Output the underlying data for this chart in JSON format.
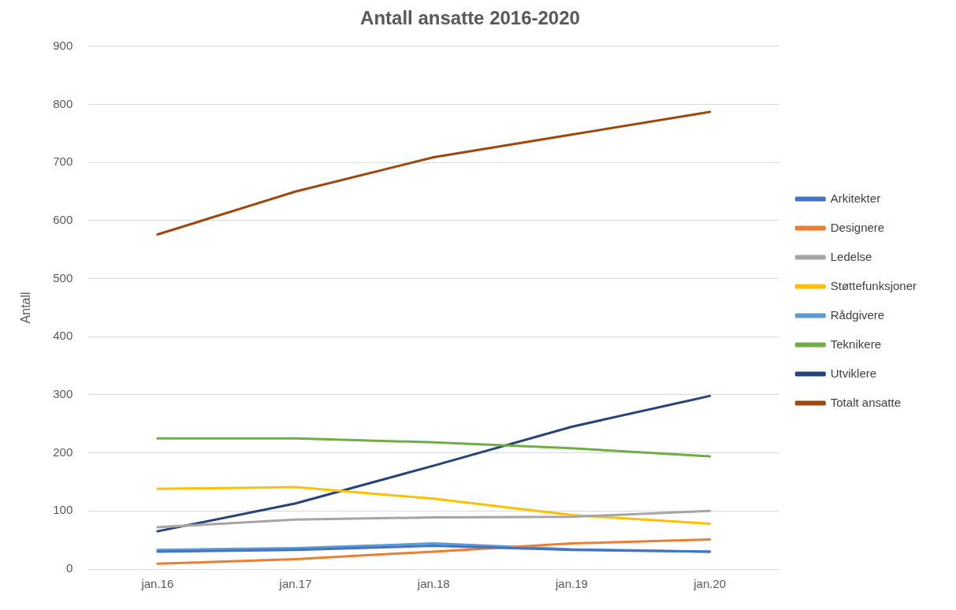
{
  "chart_data": {
    "type": "line",
    "title": "Antall ansatte 2016-2020",
    "ylabel": "Antall",
    "categories": [
      "jan.16",
      "jan.17",
      "jan.18",
      "jan.19",
      "jan.20"
    ],
    "series": [
      {
        "name": "Arkitekter",
        "color": "#4472c4",
        "values": [
          30,
          33,
          40,
          33,
          30
        ]
      },
      {
        "name": "Designere",
        "color": "#ed7d31",
        "values": [
          9,
          17,
          30,
          44,
          51
        ]
      },
      {
        "name": "Ledelse",
        "color": "#a5a5a5",
        "values": [
          72,
          85,
          89,
          90,
          100
        ]
      },
      {
        "name": "Støttefunksjoner",
        "color": "#ffc000",
        "values": [
          138,
          141,
          121,
          93,
          78
        ]
      },
      {
        "name": "Rådgivere",
        "color": "#5b9bd5",
        "values": [
          33,
          36,
          44,
          34,
          30
        ]
      },
      {
        "name": "Teknikere",
        "color": "#70ad47",
        "values": [
          225,
          225,
          218,
          208,
          194
        ]
      },
      {
        "name": "Utviklere",
        "color": "#264478",
        "values": [
          65,
          113,
          178,
          245,
          298
        ]
      },
      {
        "name": "Totalt ansatte",
        "color": "#9e480e",
        "values": [
          576,
          650,
          709,
          748,
          787
        ]
      }
    ],
    "ylim": [
      0,
      900
    ],
    "yticks": [
      0,
      100,
      200,
      300,
      400,
      500,
      600,
      700,
      800,
      900
    ],
    "grid": "y",
    "legend": "right",
    "marker": "none",
    "line_style": "solid"
  }
}
